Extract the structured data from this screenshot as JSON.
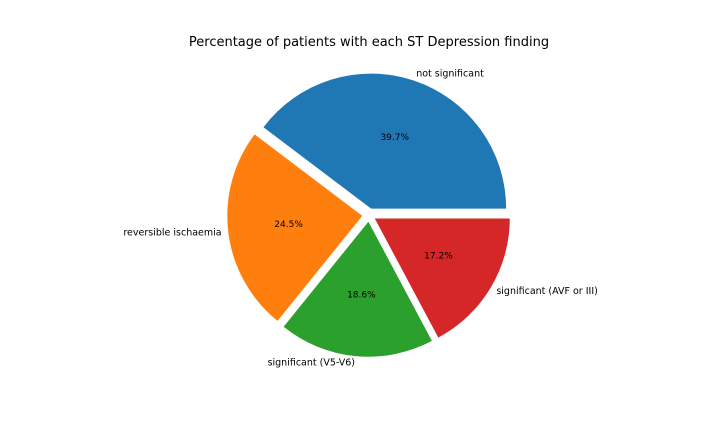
{
  "chart_data": {
    "type": "pie",
    "title": "Percentage of patients with each ST Depression finding",
    "categories": [
      "not significant",
      "reversible ischaemia",
      "significant (V5-V6)",
      "significant (AVF or III)"
    ],
    "values": [
      39.7,
      24.5,
      18.6,
      17.2
    ],
    "percent_labels": [
      "39.7%",
      "24.5%",
      "18.6%",
      "17.2%"
    ],
    "colors": [
      "#1f77b4",
      "#ff7f0e",
      "#2ca02c",
      "#d62728"
    ],
    "start_angle_deg": 0,
    "direction": "counterclockwise",
    "exploded": true,
    "legend": "none"
  }
}
